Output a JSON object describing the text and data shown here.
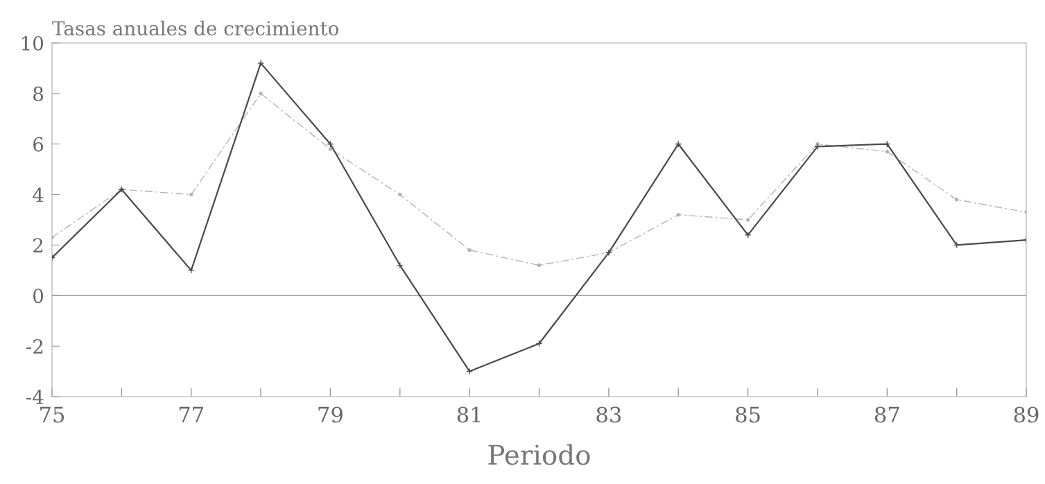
{
  "chart_data": {
    "type": "line",
    "title": "Tasas anuales de crecimiento",
    "xlabel": "Periodo",
    "x": [
      75,
      76,
      77,
      78,
      79,
      80,
      81,
      82,
      83,
      84,
      85,
      86,
      87,
      88,
      89
    ],
    "series": [
      {
        "color": "#4a4a4a",
        "marker": "cross",
        "line_style": "solid",
        "values": [
          1.5,
          4.2,
          1.0,
          9.2,
          6.0,
          1.2,
          -3.0,
          -1.9,
          1.7,
          6.0,
          2.4,
          5.9,
          6.0,
          2.0,
          2.2
        ]
      },
      {
        "color": "#b4b4b4",
        "marker": "circle",
        "line_style": "dashed",
        "values": [
          2.3,
          4.2,
          4.0,
          8.0,
          5.8,
          4.0,
          1.8,
          1.2,
          1.7,
          3.2,
          3.0,
          6.0,
          5.7,
          3.8,
          3.3
        ]
      }
    ],
    "xlim": [
      75,
      89
    ],
    "ylim": [
      -4,
      10
    ],
    "xticks": [
      75,
      {
        "value": 76,
        "label": null
      },
      77,
      {
        "value": 78,
        "label": null
      },
      79,
      {
        "value": 80,
        "label": null
      },
      81,
      {
        "value": 82,
        "label": null
      },
      83,
      {
        "value": 84,
        "label": null
      },
      85,
      {
        "value": 86,
        "label": null
      },
      87,
      {
        "value": 88,
        "label": null
      },
      89
    ],
    "yticks": [
      -4,
      -2,
      0,
      2,
      4,
      6,
      8,
      10
    ],
    "ref_lines": [
      {
        "axis": "y",
        "value": 0,
        "color": "#a0a0a0"
      }
    ],
    "grid": false,
    "legend": false
  }
}
